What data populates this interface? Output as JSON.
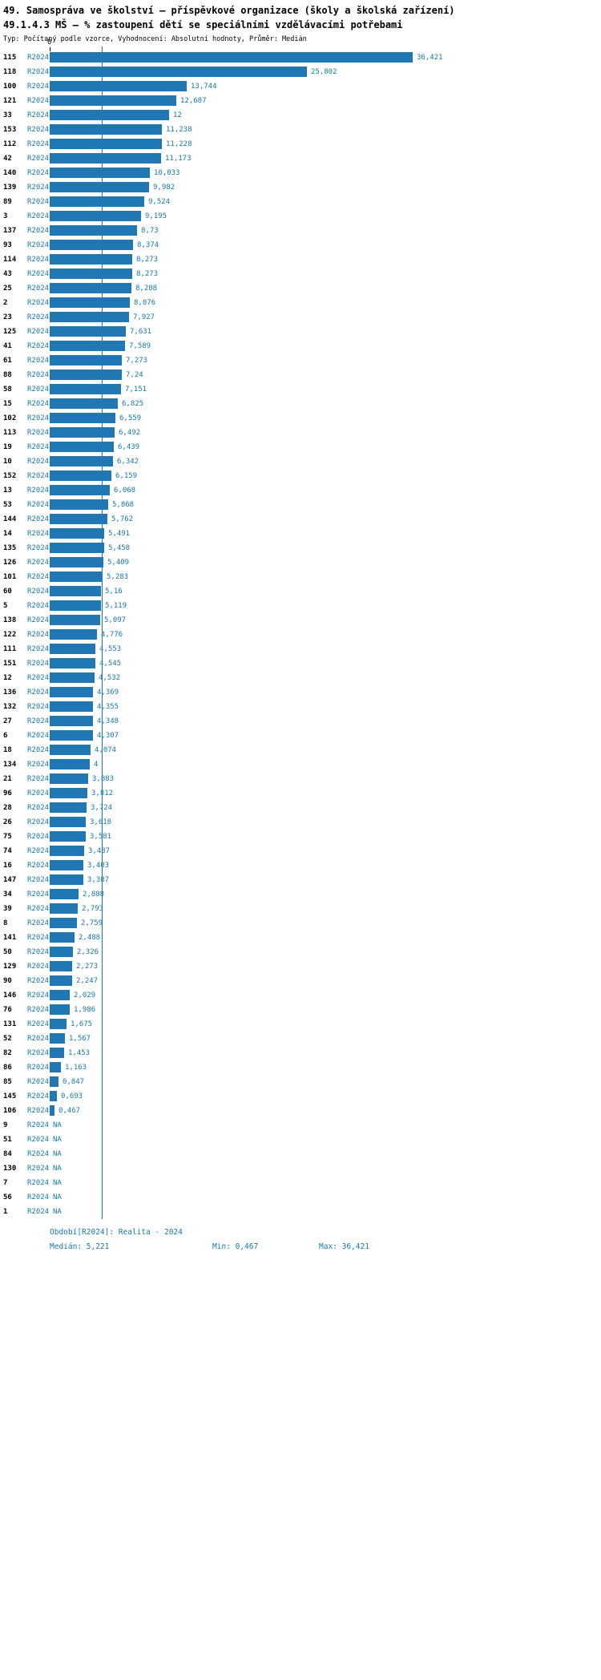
{
  "header": {
    "title": "49. Samospráva ve školství – příspěvkové organizace (školy a školská zařízení)",
    "subtitle": "49.1.4.3 MŠ – % zastoupení dětí se speciálními vzdělávacími potřebami",
    "meta": "Typ: Počítaný podle vzorce, Vyhodnocení: Absolutní hodnoty, Průměr: Medián"
  },
  "chart_data": {
    "type": "bar",
    "orientation": "horizontal",
    "zero_label": "0",
    "xlim": [
      0,
      36.421
    ],
    "median": 5.221,
    "min": 0.467,
    "max": 36.421,
    "series_period": "R2024",
    "rows": [
      {
        "id": "115",
        "period": "R2024",
        "value": 36.421,
        "label": "36,421"
      },
      {
        "id": "118",
        "period": "R2024",
        "value": 25.802,
        "label": "25,802"
      },
      {
        "id": "100",
        "period": "R2024",
        "value": 13.744,
        "label": "13,744"
      },
      {
        "id": "121",
        "period": "R2024",
        "value": 12.687,
        "label": "12,687"
      },
      {
        "id": "33",
        "period": "R2024",
        "value": 12,
        "label": "12"
      },
      {
        "id": "153",
        "period": "R2024",
        "value": 11.238,
        "label": "11,238"
      },
      {
        "id": "112",
        "period": "R2024",
        "value": 11.228,
        "label": "11,228"
      },
      {
        "id": "42",
        "period": "R2024",
        "value": 11.173,
        "label": "11,173"
      },
      {
        "id": "140",
        "period": "R2024",
        "value": 10.033,
        "label": "10,033"
      },
      {
        "id": "139",
        "period": "R2024",
        "value": 9.982,
        "label": "9,982"
      },
      {
        "id": "89",
        "period": "R2024",
        "value": 9.524,
        "label": "9,524"
      },
      {
        "id": "3",
        "period": "R2024",
        "value": 9.195,
        "label": "9,195"
      },
      {
        "id": "137",
        "period": "R2024",
        "value": 8.73,
        "label": "8,73"
      },
      {
        "id": "93",
        "period": "R2024",
        "value": 8.374,
        "label": "8,374"
      },
      {
        "id": "114",
        "period": "R2024",
        "value": 8.273,
        "label": "8,273"
      },
      {
        "id": "43",
        "period": "R2024",
        "value": 8.273,
        "label": "8,273"
      },
      {
        "id": "25",
        "period": "R2024",
        "value": 8.208,
        "label": "8,208"
      },
      {
        "id": "2",
        "period": "R2024",
        "value": 8.076,
        "label": "8,076"
      },
      {
        "id": "23",
        "period": "R2024",
        "value": 7.927,
        "label": "7,927"
      },
      {
        "id": "125",
        "period": "R2024",
        "value": 7.631,
        "label": "7,631"
      },
      {
        "id": "41",
        "period": "R2024",
        "value": 7.589,
        "label": "7,589"
      },
      {
        "id": "61",
        "period": "R2024",
        "value": 7.273,
        "label": "7,273"
      },
      {
        "id": "88",
        "period": "R2024",
        "value": 7.24,
        "label": "7,24"
      },
      {
        "id": "58",
        "period": "R2024",
        "value": 7.151,
        "label": "7,151"
      },
      {
        "id": "15",
        "period": "R2024",
        "value": 6.825,
        "label": "6,825"
      },
      {
        "id": "102",
        "period": "R2024",
        "value": 6.559,
        "label": "6,559"
      },
      {
        "id": "113",
        "period": "R2024",
        "value": 6.492,
        "label": "6,492"
      },
      {
        "id": "19",
        "period": "R2024",
        "value": 6.439,
        "label": "6,439"
      },
      {
        "id": "10",
        "period": "R2024",
        "value": 6.342,
        "label": "6,342"
      },
      {
        "id": "152",
        "period": "R2024",
        "value": 6.159,
        "label": "6,159"
      },
      {
        "id": "13",
        "period": "R2024",
        "value": 6.068,
        "label": "6,068"
      },
      {
        "id": "53",
        "period": "R2024",
        "value": 5.868,
        "label": "5,868"
      },
      {
        "id": "144",
        "period": "R2024",
        "value": 5.762,
        "label": "5,762"
      },
      {
        "id": "14",
        "period": "R2024",
        "value": 5.491,
        "label": "5,491"
      },
      {
        "id": "135",
        "period": "R2024",
        "value": 5.458,
        "label": "5,458"
      },
      {
        "id": "126",
        "period": "R2024",
        "value": 5.409,
        "label": "5,409"
      },
      {
        "id": "101",
        "period": "R2024",
        "value": 5.283,
        "label": "5,283"
      },
      {
        "id": "60",
        "period": "R2024",
        "value": 5.16,
        "label": "5,16"
      },
      {
        "id": "5",
        "period": "R2024",
        "value": 5.119,
        "label": "5,119"
      },
      {
        "id": "138",
        "period": "R2024",
        "value": 5.097,
        "label": "5,097"
      },
      {
        "id": "122",
        "period": "R2024",
        "value": 4.776,
        "label": "4,776"
      },
      {
        "id": "111",
        "period": "R2024",
        "value": 4.553,
        "label": "4,553"
      },
      {
        "id": "151",
        "period": "R2024",
        "value": 4.545,
        "label": "4,545"
      },
      {
        "id": "12",
        "period": "R2024",
        "value": 4.532,
        "label": "4,532"
      },
      {
        "id": "136",
        "period": "R2024",
        "value": 4.369,
        "label": "4,369"
      },
      {
        "id": "132",
        "period": "R2024",
        "value": 4.355,
        "label": "4,355"
      },
      {
        "id": "27",
        "period": "R2024",
        "value": 4.348,
        "label": "4,348"
      },
      {
        "id": "6",
        "period": "R2024",
        "value": 4.307,
        "label": "4,307"
      },
      {
        "id": "18",
        "period": "R2024",
        "value": 4.074,
        "label": "4,074"
      },
      {
        "id": "134",
        "period": "R2024",
        "value": 4,
        "label": "4"
      },
      {
        "id": "21",
        "period": "R2024",
        "value": 3.883,
        "label": "3,883"
      },
      {
        "id": "96",
        "period": "R2024",
        "value": 3.812,
        "label": "3,812"
      },
      {
        "id": "28",
        "period": "R2024",
        "value": 3.724,
        "label": "3,724"
      },
      {
        "id": "26",
        "period": "R2024",
        "value": 3.618,
        "label": "3,618"
      },
      {
        "id": "75",
        "period": "R2024",
        "value": 3.581,
        "label": "3,581"
      },
      {
        "id": "74",
        "period": "R2024",
        "value": 3.487,
        "label": "3,487"
      },
      {
        "id": "16",
        "period": "R2024",
        "value": 3.403,
        "label": "3,403"
      },
      {
        "id": "147",
        "period": "R2024",
        "value": 3.387,
        "label": "3,387"
      },
      {
        "id": "34",
        "period": "R2024",
        "value": 2.888,
        "label": "2,888"
      },
      {
        "id": "39",
        "period": "R2024",
        "value": 2.793,
        "label": "2,793"
      },
      {
        "id": "8",
        "period": "R2024",
        "value": 2.759,
        "label": "2,759"
      },
      {
        "id": "141",
        "period": "R2024",
        "value": 2.488,
        "label": "2,488"
      },
      {
        "id": "50",
        "period": "R2024",
        "value": 2.326,
        "label": "2,326"
      },
      {
        "id": "129",
        "period": "R2024",
        "value": 2.273,
        "label": "2,273"
      },
      {
        "id": "90",
        "period": "R2024",
        "value": 2.247,
        "label": "2,247"
      },
      {
        "id": "146",
        "period": "R2024",
        "value": 2.029,
        "label": "2,029"
      },
      {
        "id": "76",
        "period": "R2024",
        "value": 1.986,
        "label": "1,986"
      },
      {
        "id": "131",
        "period": "R2024",
        "value": 1.675,
        "label": "1,675"
      },
      {
        "id": "52",
        "period": "R2024",
        "value": 1.567,
        "label": "1,567"
      },
      {
        "id": "82",
        "period": "R2024",
        "value": 1.453,
        "label": "1,453"
      },
      {
        "id": "86",
        "period": "R2024",
        "value": 1.163,
        "label": "1,163"
      },
      {
        "id": "85",
        "period": "R2024",
        "value": 0.847,
        "label": "0,847"
      },
      {
        "id": "145",
        "period": "R2024",
        "value": 0.693,
        "label": "0,693"
      },
      {
        "id": "106",
        "period": "R2024",
        "value": 0.467,
        "label": "0,467"
      },
      {
        "id": "9",
        "period": "R2024",
        "value": null,
        "label": "NA"
      },
      {
        "id": "51",
        "period": "R2024",
        "value": null,
        "label": "NA"
      },
      {
        "id": "84",
        "period": "R2024",
        "value": null,
        "label": "NA"
      },
      {
        "id": "130",
        "period": "R2024",
        "value": null,
        "label": "NA"
      },
      {
        "id": "7",
        "period": "R2024",
        "value": null,
        "label": "NA"
      },
      {
        "id": "56",
        "period": "R2024",
        "value": null,
        "label": "NA"
      },
      {
        "id": "1",
        "period": "R2024",
        "value": null,
        "label": "NA"
      }
    ]
  },
  "footer": {
    "period": "Období[R2024]: Realita - 2024",
    "median": "Medián: 5,221",
    "min": "Min: 0,467",
    "max": "Max: 36,421"
  },
  "colors": {
    "bar": "#2077b4",
    "accent": "#1778a9",
    "text": "#000000"
  }
}
